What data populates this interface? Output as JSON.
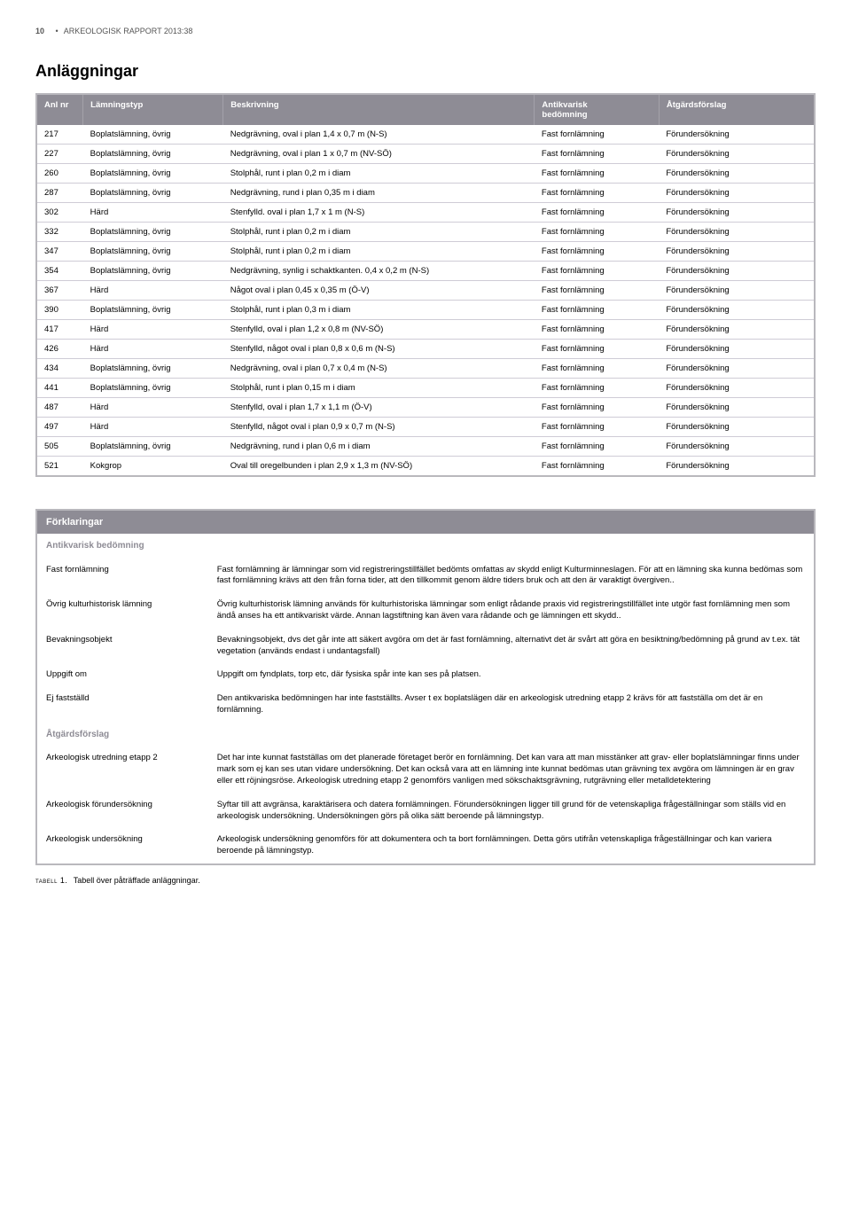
{
  "header": {
    "page_number": "10",
    "separator": "•",
    "report_label": "ARKEOLOGISK RAPPORT 2013:38"
  },
  "section_title": "Anläggningar",
  "columns": {
    "nr": "Anl nr",
    "typ": "Lämningstyp",
    "besk": "Beskrivning",
    "bed_line1": "Antikvarisk",
    "bed_line2": "bedömning",
    "atg": "Åtgärdsförslag"
  },
  "rows": [
    {
      "nr": "217",
      "typ": "Boplatslämning, övrig",
      "besk": "Nedgrävning, oval i plan 1,4 x 0,7 m (N-S)",
      "bed": "Fast fornlämning",
      "atg": "Förundersökning"
    },
    {
      "nr": "227",
      "typ": "Boplatslämning, övrig",
      "besk": "Nedgrävning, oval i plan 1 x 0,7 m (NV-SÖ)",
      "bed": "Fast fornlämning",
      "atg": "Förundersökning"
    },
    {
      "nr": "260",
      "typ": "Boplatslämning, övrig",
      "besk": "Stolphål, runt i plan 0,2 m i diam",
      "bed": "Fast fornlämning",
      "atg": "Förundersökning"
    },
    {
      "nr": "287",
      "typ": "Boplatslämning, övrig",
      "besk": "Nedgrävning, rund i plan 0,35 m i diam",
      "bed": "Fast fornlämning",
      "atg": "Förundersökning"
    },
    {
      "nr": "302",
      "typ": "Härd",
      "besk": "Stenfylld. oval i plan 1,7 x 1 m (N-S)",
      "bed": "Fast fornlämning",
      "atg": "Förundersökning"
    },
    {
      "nr": "332",
      "typ": "Boplatslämning, övrig",
      "besk": "Stolphål, runt i plan 0,2 m i diam",
      "bed": "Fast fornlämning",
      "atg": "Förundersökning"
    },
    {
      "nr": "347",
      "typ": "Boplatslämning, övrig",
      "besk": "Stolphål, runt i plan 0,2 m i diam",
      "bed": "Fast fornlämning",
      "atg": "Förundersökning"
    },
    {
      "nr": "354",
      "typ": "Boplatslämning, övrig",
      "besk": "Nedgrävning, synlig i schaktkanten. 0,4 x 0,2 m (N-S)",
      "bed": "Fast fornlämning",
      "atg": "Förundersökning"
    },
    {
      "nr": "367",
      "typ": "Härd",
      "besk": "Något oval i plan 0,45 x 0,35 m (Ö-V)",
      "bed": "Fast fornlämning",
      "atg": "Förundersökning"
    },
    {
      "nr": "390",
      "typ": "Boplatslämning, övrig",
      "besk": "Stolphål, runt i plan 0,3 m i diam",
      "bed": "Fast fornlämning",
      "atg": "Förundersökning"
    },
    {
      "nr": "417",
      "typ": "Härd",
      "besk": "Stenfylld, oval i plan 1,2 x 0,8 m (NV-SÖ)",
      "bed": "Fast fornlämning",
      "atg": "Förundersökning"
    },
    {
      "nr": "426",
      "typ": "Härd",
      "besk": "Stenfylld, något oval i plan 0,8 x 0,6 m (N-S)",
      "bed": "Fast fornlämning",
      "atg": "Förundersökning"
    },
    {
      "nr": "434",
      "typ": "Boplatslämning, övrig",
      "besk": "Nedgrävning, oval i plan 0,7 x 0,4 m (N-S)",
      "bed": "Fast fornlämning",
      "atg": "Förundersökning"
    },
    {
      "nr": "441",
      "typ": "Boplatslämning, övrig",
      "besk": "Stolphål, runt i plan 0,15 m i diam",
      "bed": "Fast fornlämning",
      "atg": "Förundersökning"
    },
    {
      "nr": "487",
      "typ": "Härd",
      "besk": "Stenfylld, oval i plan 1,7 x 1,1 m (Ö-V)",
      "bed": "Fast fornlämning",
      "atg": "Förundersökning"
    },
    {
      "nr": "497",
      "typ": "Härd",
      "besk": "Stenfylld, något oval i plan 0,9 x 0,7 m (N-S)",
      "bed": "Fast fornlämning",
      "atg": "Förundersökning"
    },
    {
      "nr": "505",
      "typ": "Boplatslämning, övrig",
      "besk": "Nedgrävning, rund i plan 0,6 m i diam",
      "bed": "Fast fornlämning",
      "atg": "Förundersökning"
    },
    {
      "nr": "521",
      "typ": "Kokgrop",
      "besk": "Oval till oregelbunden i plan 2,9 x 1,3 m (NV-SÖ)",
      "bed": "Fast fornlämning",
      "atg": "Förundersökning"
    }
  ],
  "explain": {
    "title": "Förklaringar",
    "sub1": "Antikvarisk bedömning",
    "items1": [
      {
        "key": "Fast fornlämning",
        "val": "Fast fornlämning är lämningar som vid registreringstillfället bedömts omfattas av skydd enligt Kulturminneslagen. För att en lämning ska kunna bedömas som fast fornlämning krävs att den från forna tider, att den tillkommit genom äldre tiders bruk och att den är varaktigt övergiven.."
      },
      {
        "key": "Övrig kulturhistorisk lämning",
        "val": "Övrig kulturhistorisk lämning används för kulturhistoriska lämningar som enligt rådande praxis vid registreringstillfället inte utgör fast fornlämning men som ändå anses ha ett antikvariskt värde.  Annan lagstiftning kan även vara rådande och ge lämningen ett skydd.."
      },
      {
        "key": "Bevakningsobjekt",
        "val": "Bevakningsobjekt, dvs det går inte att säkert avgöra om det är fast fornlämning, alternativt det är svårt att göra en besiktning/bedömning på grund av t.ex. tät vegetation (används endast i undantagsfall)"
      },
      {
        "key": "Uppgift om",
        "val": "Uppgift om fyndplats, torp etc, där fysiska spår inte kan ses på platsen."
      },
      {
        "key": "Ej fastställd",
        "val": "Den antikvariska bedömningen har inte fastställts. Avser t ex boplatslägen där en arkeologisk utredning etapp 2 krävs för att fastställa om det är en fornlämning."
      }
    ],
    "sub2": "Åtgärdsförslag",
    "items2": [
      {
        "key": "Arkeologisk utredning etapp 2",
        "val": "Det har inte kunnat fastställas om det planerade företaget berör en fornlämning. Det kan vara  att man misstänker att grav- eller boplatslämningar finns under mark som ej kan ses utan vidare undersökning. Det kan också vara att en lämning inte kunnat bedömas utan grävning tex avgöra om lämningen är en grav eller ett röjningsröse. Arkeologisk utredning etapp 2 genomförs vanligen med sökschaktsgrävning, rutgrävning eller metalldetektering"
      },
      {
        "key": "Arkeologisk förundersökning",
        "val": "Syftar till att avgränsa, karaktärisera och datera fornlämningen. Förundersökningen ligger till grund för de vetenskapliga frågeställningar som ställs vid en arkeologisk undersökning.  Undersökningen görs på olika sätt beroende på lämningstyp."
      },
      {
        "key": "Arkeologisk undersökning",
        "val": "Arkeologisk undersökning genomförs för att dokumentera och ta bort fornlämningen. Detta görs utifrån vetenskapliga frågeställningar och kan variera beroende på lämningstyp."
      }
    ]
  },
  "caption": {
    "label": "tabell 1.",
    "text": "Tabell över påträffade anläggningar."
  }
}
